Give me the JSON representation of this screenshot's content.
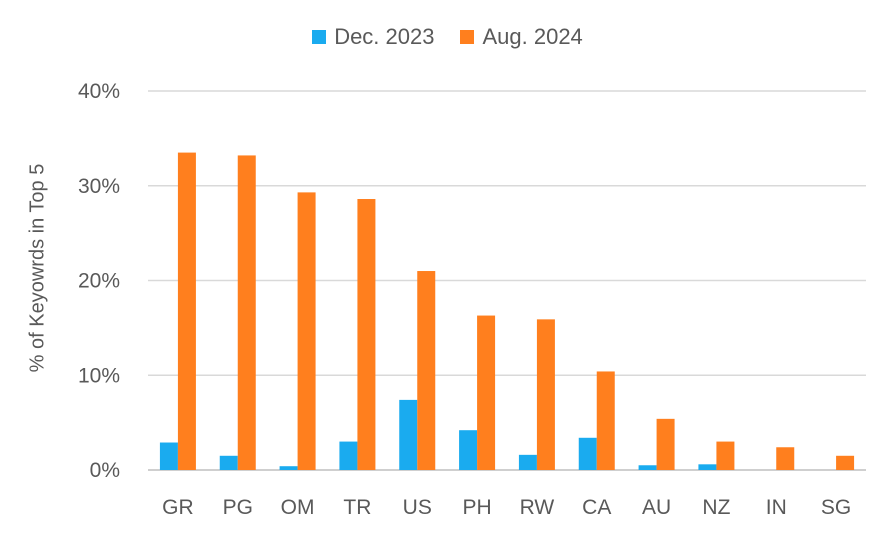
{
  "chart_data": {
    "type": "bar",
    "title": "",
    "xlabel": "",
    "ylabel": "% of Keyowrds in Top 5",
    "ylim": [
      0,
      40
    ],
    "yticks": [
      "0%",
      "10%",
      "20%",
      "30%",
      "40%"
    ],
    "grid": true,
    "legend_position": "top-center",
    "categories": [
      "GR",
      "PG",
      "OM",
      "TR",
      "US",
      "PH",
      "RW",
      "CA",
      "AU",
      "NZ",
      "IN",
      "SG"
    ],
    "series": [
      {
        "name": "Dec. 2023",
        "color": "#1AABEF",
        "values": [
          2.9,
          1.5,
          0.4,
          3.0,
          7.4,
          4.2,
          1.6,
          3.4,
          0.5,
          0.6,
          0.0,
          0.0
        ]
      },
      {
        "name": "Aug. 2024",
        "color": "#FF7F1E",
        "values": [
          33.5,
          33.2,
          29.3,
          28.6,
          21.0,
          16.3,
          15.9,
          10.4,
          5.4,
          3.0,
          2.4,
          1.5
        ]
      }
    ]
  }
}
